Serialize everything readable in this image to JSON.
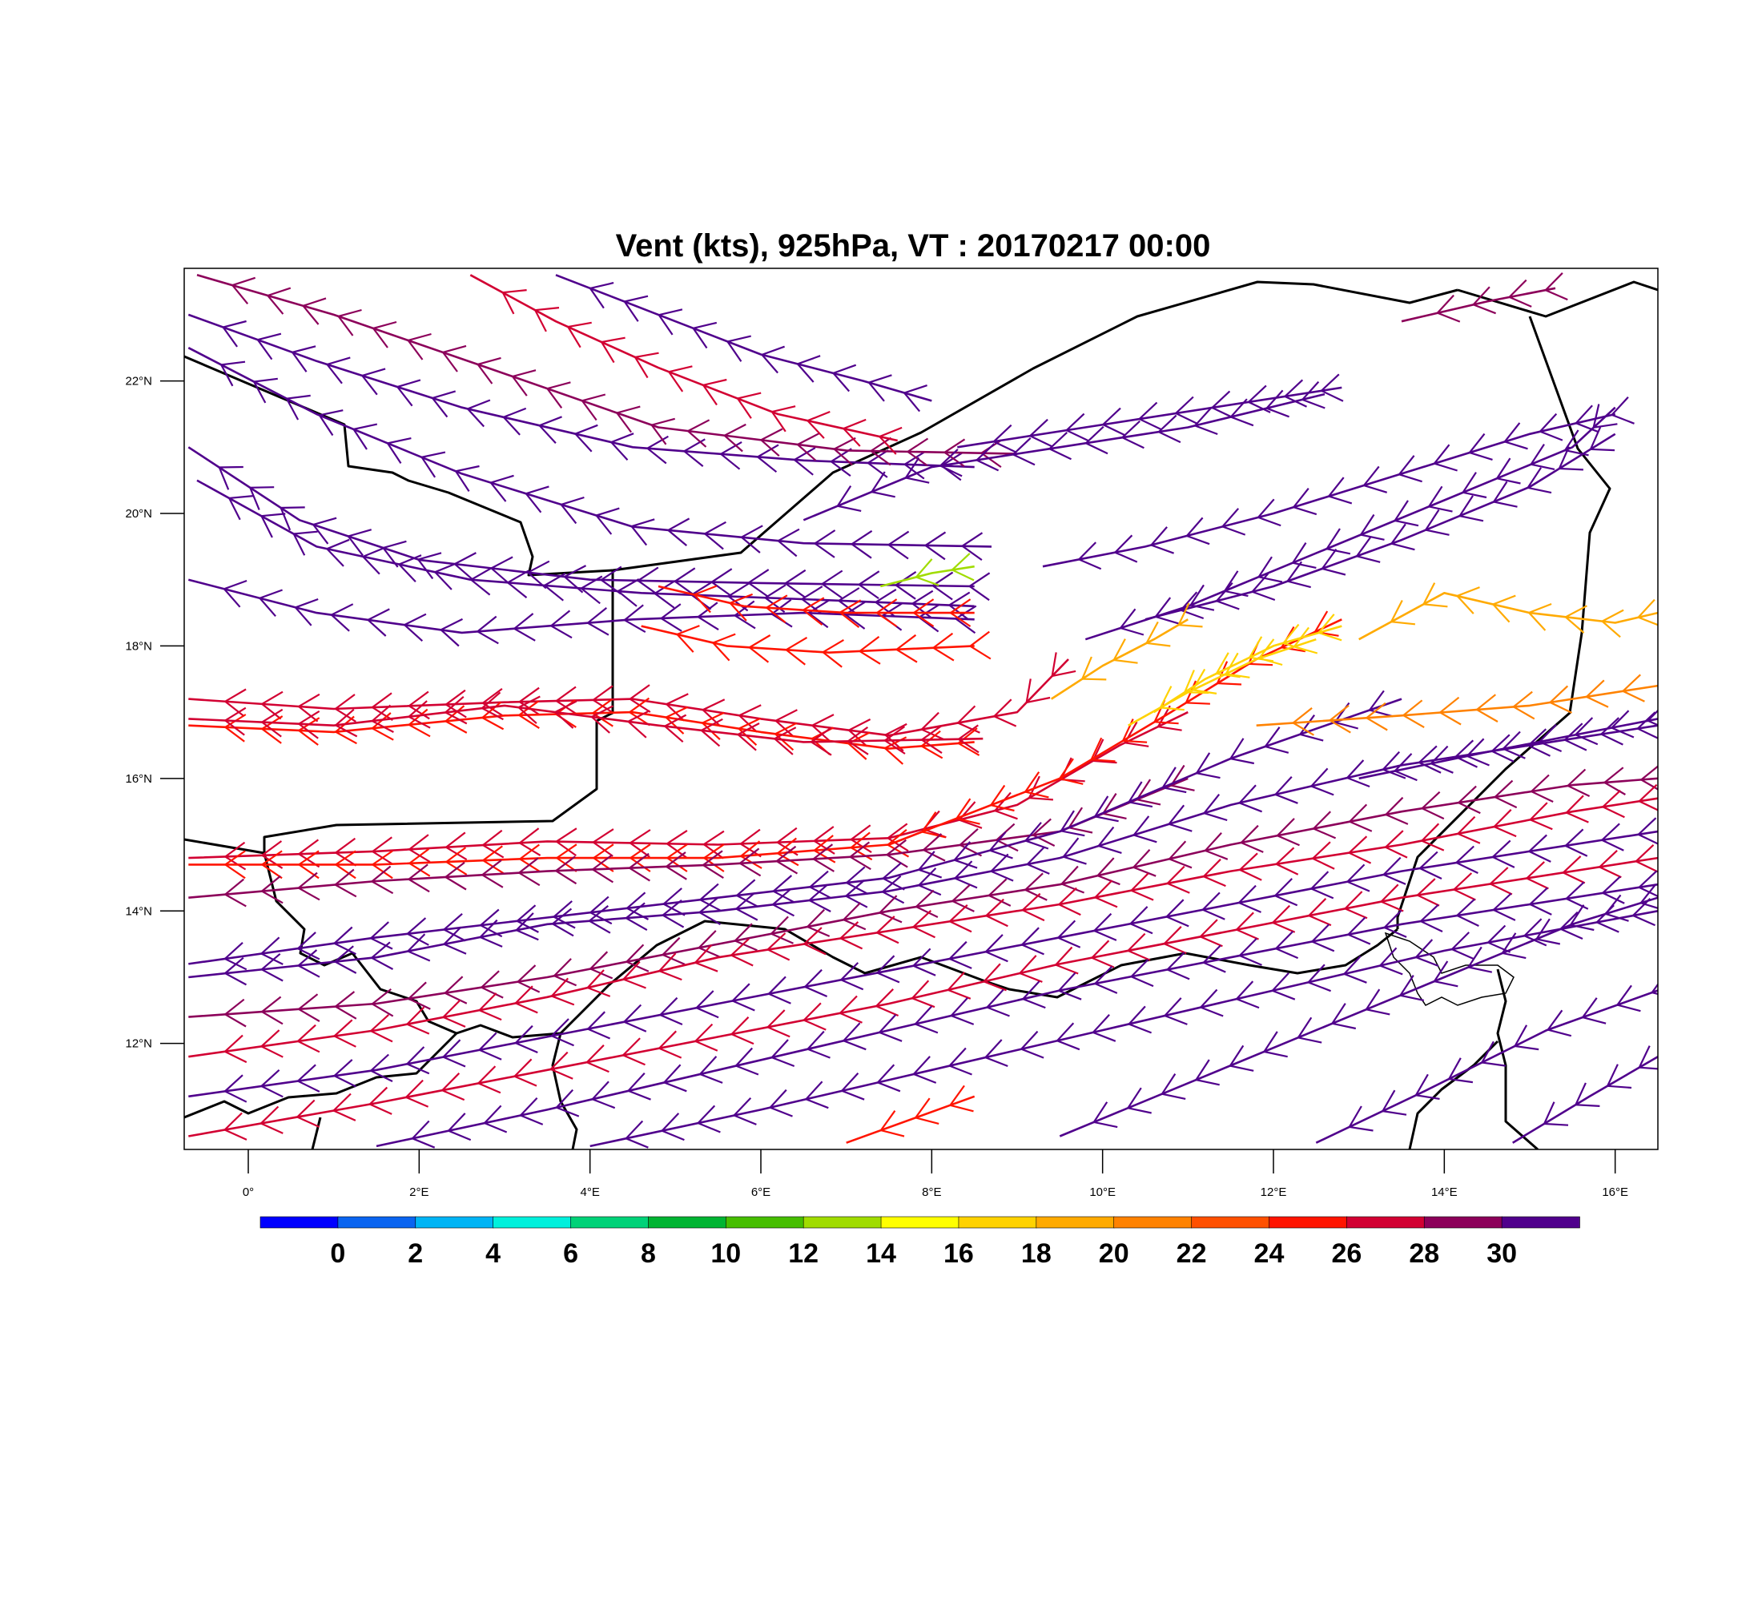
{
  "map": {
    "title": "Vent (kts), 925hPa, VT : 20170217  00:00",
    "variable": "wind speed streamlines with barbs",
    "units": "kts",
    "level": "925hPa",
    "valid_time": "20170217  00:00",
    "extent": {
      "lon_min": -0.75,
      "lon_max": 16.5,
      "lat_min": 10.4,
      "lat_max": 23.7
    },
    "lat_ticks": [
      {
        "value": 22,
        "label": "22°N"
      },
      {
        "value": 20,
        "label": "20°N"
      },
      {
        "value": 18,
        "label": "18°N"
      },
      {
        "value": 16,
        "label": "16°N"
      },
      {
        "value": 14,
        "label": "14°N"
      },
      {
        "value": 12,
        "label": "12°N"
      }
    ],
    "lon_ticks": [
      {
        "value": 0,
        "label": "0°"
      },
      {
        "value": 2,
        "label": "2°E"
      },
      {
        "value": 4,
        "label": "4°E"
      },
      {
        "value": 6,
        "label": "6°E"
      },
      {
        "value": 8,
        "label": "8°E"
      },
      {
        "value": 10,
        "label": "10°E"
      },
      {
        "value": 12,
        "label": "12°E"
      },
      {
        "value": 14,
        "label": "14°E"
      },
      {
        "value": 16,
        "label": "16°E"
      }
    ]
  },
  "colorbar": {
    "labels": [
      "0",
      "2",
      "4",
      "6",
      "8",
      "10",
      "12",
      "14",
      "16",
      "18",
      "20",
      "22",
      "24",
      "26",
      "28",
      "30"
    ],
    "colors": [
      "#0000ff",
      "#0a64f0",
      "#00b4f5",
      "#00f0dc",
      "#00d278",
      "#00b432",
      "#46be00",
      "#a0dc00",
      "#ffff00",
      "#ffd200",
      "#ffaa00",
      "#ff8200",
      "#ff5000",
      "#ff1400",
      "#d20032",
      "#8c005a",
      "#50008c"
    ]
  },
  "features": {
    "borders_label": "country borders",
    "lake_label": "Lake Chad"
  },
  "streamlines": [
    {
      "id": "s1",
      "speed": 30,
      "points": [
        [
          -0.7,
          23.0
        ],
        [
          0.8,
          22.3
        ],
        [
          2.5,
          21.6
        ],
        [
          4.5,
          21.0
        ],
        [
          6.5,
          20.8
        ],
        [
          8.5,
          20.7
        ]
      ]
    },
    {
      "id": "s2",
      "speed": 29,
      "points": [
        [
          -0.6,
          23.6
        ],
        [
          1.0,
          23.0
        ],
        [
          2.8,
          22.2
        ],
        [
          4.8,
          21.3
        ],
        [
          7.0,
          20.95
        ],
        [
          9.0,
          20.9
        ]
      ]
    },
    {
      "id": "s3",
      "speed": 26,
      "points": [
        [
          2.6,
          23.6
        ],
        [
          3.6,
          22.9
        ],
        [
          4.8,
          22.2
        ],
        [
          6.2,
          21.5
        ],
        [
          7.6,
          21.1
        ]
      ]
    },
    {
      "id": "s4",
      "speed": 30,
      "points": [
        [
          3.6,
          23.6
        ],
        [
          4.8,
          23.0
        ],
        [
          6.0,
          22.4
        ],
        [
          7.2,
          22.0
        ],
        [
          8.0,
          21.7
        ]
      ]
    },
    {
      "id": "s5",
      "speed": 30,
      "points": [
        [
          -0.7,
          22.5
        ],
        [
          0.8,
          21.5
        ],
        [
          2.5,
          20.6
        ],
        [
          4.5,
          19.8
        ],
        [
          6.5,
          19.55
        ],
        [
          8.7,
          19.5
        ]
      ]
    },
    {
      "id": "s6",
      "speed": 30,
      "points": [
        [
          -0.7,
          21.0
        ],
        [
          0.6,
          19.9
        ],
        [
          2.0,
          19.3
        ],
        [
          4.0,
          19.0
        ],
        [
          6.0,
          18.95
        ],
        [
          8.5,
          18.9
        ]
      ]
    },
    {
      "id": "s7",
      "speed": 30,
      "points": [
        [
          -0.6,
          20.5
        ],
        [
          0.8,
          19.5
        ],
        [
          2.6,
          19.0
        ],
        [
          4.6,
          18.8
        ],
        [
          6.6,
          18.7
        ],
        [
          8.5,
          18.6
        ]
      ]
    },
    {
      "id": "s8",
      "speed": 30,
      "points": [
        [
          -0.7,
          19.0
        ],
        [
          0.8,
          18.5
        ],
        [
          2.5,
          18.2
        ],
        [
          4.5,
          18.4
        ],
        [
          6.5,
          18.5
        ],
        [
          8.5,
          18.4
        ]
      ]
    },
    {
      "id": "s9",
      "speed": 25,
      "points": [
        [
          4.8,
          18.9
        ],
        [
          5.8,
          18.6
        ],
        [
          7.0,
          18.5
        ],
        [
          8.5,
          18.5
        ]
      ]
    },
    {
      "id": "s10",
      "speed": 25,
      "points": [
        [
          4.6,
          18.3
        ],
        [
          5.6,
          18.0
        ],
        [
          6.8,
          17.9
        ],
        [
          8.5,
          18.0
        ]
      ]
    },
    {
      "id": "s11",
      "speed": 27,
      "points": [
        [
          -0.7,
          17.2
        ],
        [
          1.0,
          17.05
        ],
        [
          3.0,
          17.15
        ],
        [
          4.5,
          17.2
        ],
        [
          6.0,
          16.9
        ],
        [
          7.5,
          16.65
        ],
        [
          9.0,
          17.0
        ],
        [
          9.6,
          17.8
        ]
      ]
    },
    {
      "id": "s12",
      "speed": 25,
      "points": [
        [
          -0.7,
          16.8
        ],
        [
          1.0,
          16.7
        ],
        [
          3.0,
          16.95
        ],
        [
          4.5,
          17.0
        ],
        [
          6.0,
          16.7
        ],
        [
          7.5,
          16.45
        ],
        [
          8.5,
          16.55
        ]
      ]
    },
    {
      "id": "s13",
      "speed": 26,
      "points": [
        [
          -0.7,
          16.9
        ],
        [
          1.0,
          16.8
        ],
        [
          3.0,
          17.1
        ],
        [
          4.8,
          16.8
        ],
        [
          6.5,
          16.55
        ],
        [
          8.6,
          16.6
        ]
      ]
    },
    {
      "id": "s14",
      "speed": 26,
      "points": [
        [
          -0.7,
          14.8
        ],
        [
          1.5,
          14.9
        ],
        [
          3.5,
          15.05
        ],
        [
          5.5,
          15.0
        ],
        [
          7.5,
          15.1
        ],
        [
          9.0,
          15.6
        ],
        [
          10.2,
          16.5
        ],
        [
          11.0,
          17.0
        ]
      ]
    },
    {
      "id": "s15",
      "speed": 25,
      "points": [
        [
          -0.7,
          14.7
        ],
        [
          1.5,
          14.7
        ],
        [
          3.5,
          14.8
        ],
        [
          5.5,
          14.8
        ],
        [
          7.5,
          15.0
        ],
        [
          9.5,
          16.0
        ],
        [
          10.8,
          17.0
        ],
        [
          11.8,
          17.8
        ],
        [
          12.8,
          18.4
        ]
      ]
    },
    {
      "id": "s16",
      "speed": 29,
      "points": [
        [
          -0.7,
          14.2
        ],
        [
          1.5,
          14.45
        ],
        [
          3.5,
          14.6
        ],
        [
          5.5,
          14.7
        ],
        [
          7.5,
          14.85
        ],
        [
          9.5,
          15.2
        ],
        [
          11.0,
          16.0
        ]
      ]
    },
    {
      "id": "s17",
      "speed": 30,
      "points": [
        [
          -0.7,
          13.2
        ],
        [
          1.5,
          13.6
        ],
        [
          3.5,
          13.9
        ],
        [
          5.5,
          14.2
        ],
        [
          7.5,
          14.5
        ],
        [
          9.5,
          15.2
        ],
        [
          11.5,
          16.3
        ],
        [
          13.5,
          17.2
        ]
      ]
    },
    {
      "id": "s18",
      "speed": 30,
      "points": [
        [
          -0.7,
          13.0
        ],
        [
          1.5,
          13.3
        ],
        [
          3.5,
          13.8
        ],
        [
          5.5,
          14.0
        ],
        [
          7.5,
          14.3
        ],
        [
          9.5,
          14.8
        ],
        [
          11.5,
          15.6
        ],
        [
          13.5,
          16.2
        ],
        [
          15.5,
          16.6
        ],
        [
          16.5,
          16.8
        ]
      ]
    },
    {
      "id": "s19",
      "speed": 29,
      "points": [
        [
          -0.7,
          12.4
        ],
        [
          1.5,
          12.6
        ],
        [
          3.5,
          13.0
        ],
        [
          5.5,
          13.5
        ],
        [
          7.5,
          14.0
        ],
        [
          9.5,
          14.4
        ],
        [
          11.5,
          15.0
        ],
        [
          13.5,
          15.5
        ],
        [
          15.5,
          15.9
        ],
        [
          16.5,
          16.0
        ]
      ]
    },
    {
      "id": "s20",
      "speed": 26,
      "points": [
        [
          -0.7,
          11.8
        ],
        [
          1.5,
          12.2
        ],
        [
          3.5,
          12.7
        ],
        [
          5.5,
          13.3
        ],
        [
          7.5,
          13.7
        ],
        [
          9.5,
          14.1
        ],
        [
          11.5,
          14.6
        ],
        [
          13.5,
          15.0
        ],
        [
          15.5,
          15.5
        ],
        [
          16.5,
          15.7
        ]
      ]
    },
    {
      "id": "s21",
      "speed": 30,
      "points": [
        [
          -0.7,
          11.2
        ],
        [
          1.5,
          11.6
        ],
        [
          3.5,
          12.1
        ],
        [
          5.5,
          12.6
        ],
        [
          7.5,
          13.1
        ],
        [
          9.5,
          13.6
        ],
        [
          11.5,
          14.1
        ],
        [
          13.5,
          14.6
        ],
        [
          16.5,
          15.2
        ]
      ]
    },
    {
      "id": "s22",
      "speed": 26,
      "points": [
        [
          -0.7,
          10.6
        ],
        [
          1.5,
          11.1
        ],
        [
          3.5,
          11.6
        ],
        [
          5.5,
          12.1
        ],
        [
          7.5,
          12.6
        ],
        [
          9.5,
          13.2
        ],
        [
          11.5,
          13.7
        ],
        [
          13.5,
          14.2
        ],
        [
          16.5,
          14.8
        ]
      ]
    },
    {
      "id": "s23",
      "speed": 30,
      "points": [
        [
          1.5,
          10.45
        ],
        [
          3.5,
          11.0
        ],
        [
          5.5,
          11.6
        ],
        [
          7.5,
          12.2
        ],
        [
          9.5,
          12.8
        ],
        [
          11.5,
          13.3
        ],
        [
          13.5,
          13.8
        ],
        [
          16.5,
          14.4
        ]
      ]
    },
    {
      "id": "s24",
      "speed": 30,
      "points": [
        [
          4.0,
          10.45
        ],
        [
          6.0,
          11.0
        ],
        [
          8.0,
          11.6
        ],
        [
          10.0,
          12.2
        ],
        [
          12.0,
          12.8
        ],
        [
          14.0,
          13.4
        ],
        [
          16.5,
          14.0
        ]
      ]
    },
    {
      "id": "s25",
      "speed": 25,
      "points": [
        [
          7.0,
          10.5
        ],
        [
          8.5,
          11.2
        ]
      ]
    },
    {
      "id": "s26",
      "speed": 30,
      "points": [
        [
          9.5,
          10.6
        ],
        [
          11.0,
          11.4
        ],
        [
          12.5,
          12.2
        ],
        [
          14.0,
          13.0
        ],
        [
          15.5,
          13.8
        ],
        [
          16.5,
          14.2
        ]
      ]
    },
    {
      "id": "s27",
      "speed": 30,
      "points": [
        [
          12.5,
          10.5
        ],
        [
          13.8,
          11.3
        ],
        [
          15.2,
          12.2
        ],
        [
          16.5,
          12.8
        ]
      ]
    },
    {
      "id": "s28",
      "speed": 30,
      "points": [
        [
          14.8,
          10.5
        ],
        [
          15.7,
          11.2
        ],
        [
          16.5,
          11.8
        ]
      ]
    },
    {
      "id": "s29",
      "speed": 30,
      "points": [
        [
          9.8,
          18.1
        ],
        [
          11.0,
          18.6
        ],
        [
          12.5,
          19.4
        ],
        [
          14.0,
          20.2
        ],
        [
          15.5,
          21.0
        ],
        [
          16.0,
          21.6
        ]
      ]
    },
    {
      "id": "s30",
      "speed": 30,
      "points": [
        [
          9.3,
          19.2
        ],
        [
          10.5,
          19.5
        ],
        [
          12.0,
          20.0
        ],
        [
          13.5,
          20.6
        ],
        [
          15.0,
          21.2
        ],
        [
          16.0,
          21.5
        ]
      ]
    },
    {
      "id": "s31",
      "speed": 30,
      "points": [
        [
          10.5,
          18.4
        ],
        [
          12.0,
          18.9
        ],
        [
          13.5,
          19.6
        ],
        [
          15.0,
          20.4
        ],
        [
          16.0,
          21.2
        ]
      ]
    },
    {
      "id": "s32",
      "speed": 30,
      "points": [
        [
          6.5,
          19.9
        ],
        [
          8.0,
          20.7
        ],
        [
          9.5,
          21.0
        ],
        [
          11.0,
          21.3
        ],
        [
          12.6,
          21.8
        ]
      ]
    },
    {
      "id": "s33",
      "speed": 30,
      "points": [
        [
          8.3,
          21.0
        ],
        [
          9.8,
          21.3
        ],
        [
          11.3,
          21.6
        ],
        [
          12.8,
          21.9
        ]
      ]
    },
    {
      "id": "s34",
      "speed": 18,
      "points": [
        [
          9.4,
          17.2
        ],
        [
          10.0,
          17.7
        ],
        [
          10.6,
          18.1
        ],
        [
          11.0,
          18.4
        ]
      ]
    },
    {
      "id": "s35",
      "speed": 16,
      "points": [
        [
          10.3,
          16.8
        ],
        [
          11.0,
          17.3
        ],
        [
          11.8,
          17.8
        ],
        [
          12.5,
          18.1
        ]
      ]
    },
    {
      "id": "s36",
      "speed": 17,
      "points": [
        [
          10.6,
          17.0
        ],
        [
          11.2,
          17.5
        ],
        [
          12.0,
          18.0
        ],
        [
          12.8,
          18.3
        ]
      ]
    },
    {
      "id": "s37",
      "speed": 21,
      "points": [
        [
          11.8,
          16.8
        ],
        [
          13.5,
          16.95
        ],
        [
          15.0,
          17.1
        ],
        [
          16.5,
          17.4
        ]
      ]
    },
    {
      "id": "s38",
      "speed": 19,
      "points": [
        [
          13.0,
          18.1
        ],
        [
          14.0,
          18.8
        ],
        [
          15.0,
          18.5
        ],
        [
          16.0,
          18.35
        ],
        [
          16.5,
          18.5
        ]
      ]
    },
    {
      "id": "s39",
      "speed": 30,
      "points": [
        [
          13.0,
          16.0
        ],
        [
          14.5,
          16.4
        ],
        [
          16.5,
          16.9
        ]
      ]
    },
    {
      "id": "s40",
      "speed": 28,
      "points": [
        [
          13.5,
          22.9
        ],
        [
          14.5,
          23.2
        ],
        [
          15.3,
          23.4
        ]
      ]
    },
    {
      "id": "s41",
      "speed": 13,
      "points": [
        [
          7.4,
          18.9
        ],
        [
          8.0,
          19.1
        ],
        [
          8.5,
          19.2
        ]
      ]
    }
  ]
}
